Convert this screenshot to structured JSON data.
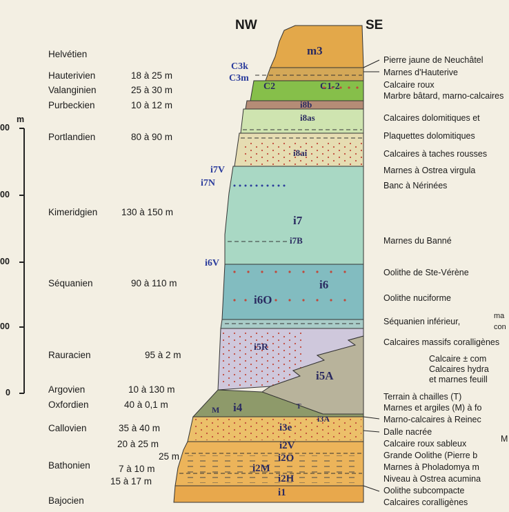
{
  "header": {
    "nw": "NW",
    "se": "SE"
  },
  "scale": {
    "unit": "m",
    "ticks": [
      "00",
      "00",
      "00",
      "00",
      "0"
    ]
  },
  "stages": [
    {
      "name": "Helvétien",
      "thickness": ""
    },
    {
      "name": "Hauterivien",
      "thickness": "18 à 25 m"
    },
    {
      "name": "Valanginien",
      "thickness": "25 à 30 m"
    },
    {
      "name": "Purbeckien",
      "thickness": "10 à 12 m"
    },
    {
      "name": "Portlandien",
      "thickness": "80 à 90 m"
    },
    {
      "name": "Kimeridgien",
      "thickness": "130 à 150 m"
    },
    {
      "name": "Séquanien",
      "thickness": "90 à 110 m"
    },
    {
      "name": "Rauracien",
      "thickness": "95 à 2 m"
    },
    {
      "name": "Argovien",
      "thickness": "10 à 130 m"
    },
    {
      "name": "Oxfordien",
      "thickness": "40 à 0,1 m"
    },
    {
      "name": "Callovien",
      "thickness": "35 à 40 m"
    },
    {
      "name": "",
      "thickness": "20 à 25 m"
    },
    {
      "name": "",
      "thickness": "25 m"
    },
    {
      "name": "Bathonien",
      "thickness": "7 à 10 m"
    },
    {
      "name": "",
      "thickness": "15 à 17 m"
    },
    {
      "name": "Bajocien",
      "thickness": ""
    }
  ],
  "symbols": [
    "m3",
    "C3k",
    "C3m",
    "C2",
    "C1-2",
    "i8b",
    "i8as",
    "i8ai",
    "i7V",
    "i7N",
    "i7",
    "i7B",
    "i6V",
    "i6",
    "i6O",
    "i5R",
    "i5A",
    "M",
    "i4",
    "T",
    "i3A",
    "i3e",
    "i2V",
    "i2O",
    "i2M",
    "i2H",
    "i1"
  ],
  "descriptions": [
    "Pierre jaune de Neuchâtel",
    "Marnes d'Hauterive",
    "Calcaire roux",
    "Marbre bâtard, marno-calcaires",
    "Calcaires dolomitiques et",
    "Plaquettes dolomitiques",
    "Calcaires à taches rousses",
    "Marnes à Ostrea virgula",
    "Banc à Nérinées",
    "Marnes du Banné",
    "Oolithe de Ste-Vérène",
    "Oolithe nuciforme",
    "Séquanien inférieur,",
    "ma",
    "con",
    "Calcaires massifs coralligènes",
    "Calcaire ± com",
    "Calcaires hydra",
    "et marnes feuill",
    "Terrain à chailles (T)",
    "Marnes et argiles (M) à fo",
    "Marno-calcaires à Reinec",
    "Dalle nacrée",
    "Calcaire roux sableux",
    "M",
    "Grande Oolithe (Pierre b",
    "Marnes à Pholadomya m",
    "Niveau à Ostrea acumina",
    "Oolithe subcompacte",
    "Calcaires coralligènes"
  ],
  "colors": {
    "m3": "#e3a84a",
    "cretaceous": "#86bf4a",
    "purbeck": "#b58c76",
    "i8as": "#cfe4b0",
    "i8ai": "#e6ddb2",
    "i7": "#a9d8c4",
    "i6": "#82bcc0",
    "i5R": "#cfc8dc",
    "i5A": "#b8b39b",
    "i4": "#8e9a6a",
    "dogger": "#ecb45a"
  }
}
